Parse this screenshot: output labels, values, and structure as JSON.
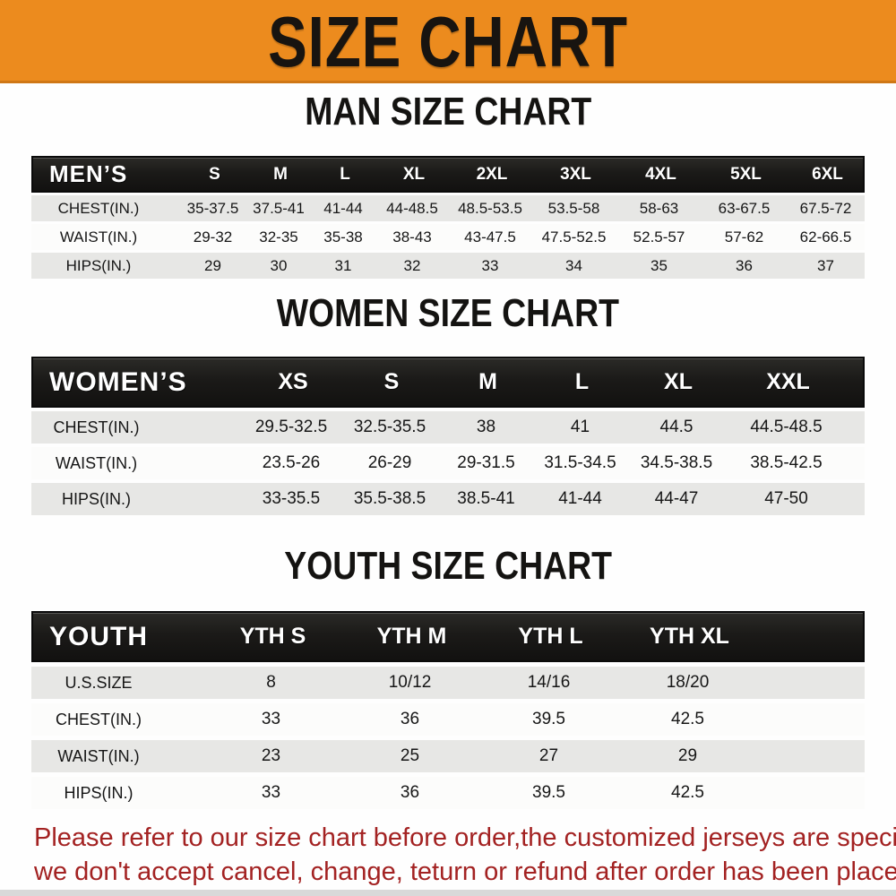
{
  "banner": {
    "title": "SIZE CHART",
    "bg_color": "#EC8B1E",
    "text_color": "#181410"
  },
  "sections": {
    "man": {
      "id": "man",
      "heading": "MAN SIZE CHART",
      "header_label": "MEN’S",
      "columns": [
        "S",
        "M",
        "L",
        "XL",
        "2XL",
        "3XL",
        "4XL",
        "5XL",
        "6XL"
      ],
      "rows": [
        {
          "label": "CHEST(IN.)",
          "values": [
            "35-37.5",
            "37.5-41",
            "41-44",
            "44-48.5",
            "48.5-53.5",
            "53.5-58",
            "58-63",
            "63-67.5",
            "67.5-72"
          ]
        },
        {
          "label": "WAIST(IN.)",
          "values": [
            "29-32",
            "32-35",
            "35-38",
            "38-43",
            "43-47.5",
            "47.5-52.5",
            "52.5-57",
            "57-62",
            "62-66.5"
          ]
        },
        {
          "label": "HIPS(IN.)",
          "values": [
            "29",
            "30",
            "31",
            "32",
            "33",
            "34",
            "35",
            "36",
            "37"
          ]
        }
      ]
    },
    "women": {
      "id": "women",
      "heading": "WOMEN SIZE CHART",
      "header_label": "WOMEN’S",
      "columns": [
        "XS",
        "S",
        "M",
        "L",
        "XL",
        "XXL"
      ],
      "rows": [
        {
          "label": "CHEST(IN.)",
          "values": [
            "29.5-32.5",
            "32.5-35.5",
            "38",
            "41",
            "44.5",
            "44.5-48.5"
          ]
        },
        {
          "label": "WAIST(IN.)",
          "values": [
            "23.5-26",
            "26-29",
            "29-31.5",
            "31.5-34.5",
            "34.5-38.5",
            "38.5-42.5"
          ]
        },
        {
          "label": "HIPS(IN.)",
          "values": [
            "33-35.5",
            "35.5-38.5",
            "38.5-41",
            "41-44",
            "44-47",
            "47-50"
          ]
        }
      ]
    },
    "youth": {
      "id": "youth",
      "heading": "YOUTH SIZE CHART",
      "header_label": "YOUTH",
      "columns": [
        "YTH S",
        "YTH M",
        "YTH L",
        "YTH XL"
      ],
      "rows": [
        {
          "label": "U.S.SIZE",
          "values": [
            "8",
            "10/12",
            "14/16",
            "18/20"
          ]
        },
        {
          "label": "CHEST(IN.)",
          "values": [
            "33",
            "36",
            "39.5",
            "42.5"
          ]
        },
        {
          "label": "WAIST(IN.)",
          "values": [
            "23",
            "25",
            "27",
            "29"
          ]
        },
        {
          "label": "HIPS(IN.)",
          "values": [
            "33",
            "36",
            "39.5",
            "42.5"
          ]
        }
      ]
    }
  },
  "disclaimer": {
    "line1": "Please refer to our size chart before order,the customized jerseys are special products,",
    "line2": "we don't accept cancel, change, teturn or refund after order has been placed!",
    "text_color": "#A32222"
  },
  "colors": {
    "row_gray": "#E7E7E5",
    "row_white": "#FCFCFB",
    "header_bar": "#1B1A18",
    "header_text": "#FFFFFF"
  }
}
